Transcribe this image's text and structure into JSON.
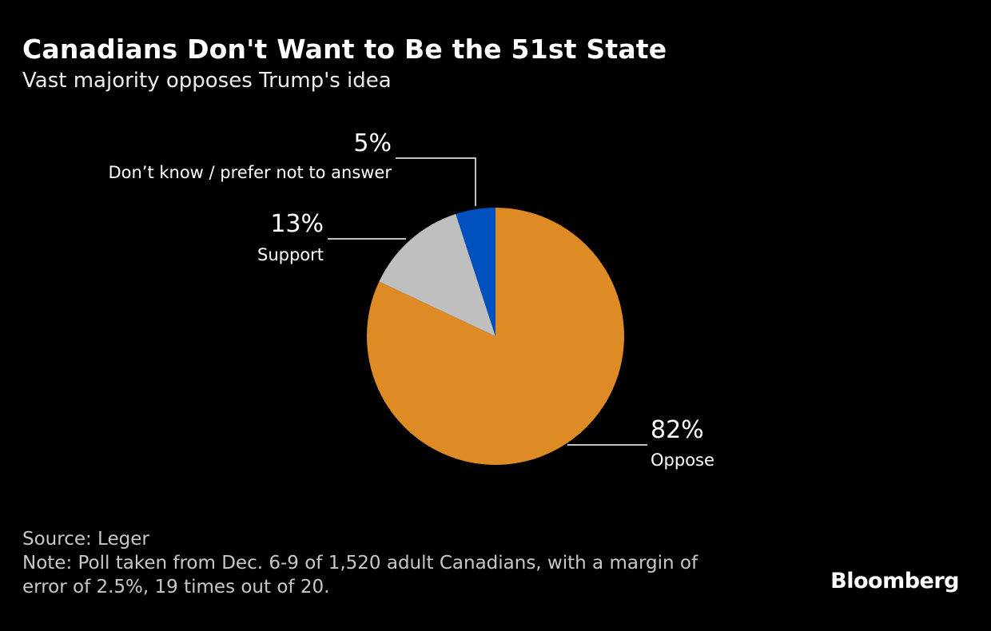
{
  "title": "Canadians Don't Want to Be the 51st State",
  "subtitle": "Vast majority opposes Trump's idea",
  "source": "Source: Leger",
  "note_line1": "Note: Poll taken from Dec. 6-9 of 1,520 adult Canadians, with a margin of",
  "note_line2": "error of 2.5%, 19 times out of 20.",
  "logo": "Bloomberg",
  "chart_data": {
    "type": "pie",
    "title": "Canadians Don't Want to Be the 51st State",
    "subtitle": "Vast majority opposes Trump's idea",
    "start": "12 o'clock, clockwise",
    "slices": [
      {
        "label": "Oppose",
        "value": 82,
        "value_label": "82%",
        "color": "#de8a25"
      },
      {
        "label": "Support",
        "value": 13,
        "value_label": "13%",
        "color": "#bfbfbf"
      },
      {
        "label": "Don’t know / prefer not to answer",
        "value": 5,
        "value_label": "5%",
        "color": "#0050c0"
      }
    ]
  }
}
